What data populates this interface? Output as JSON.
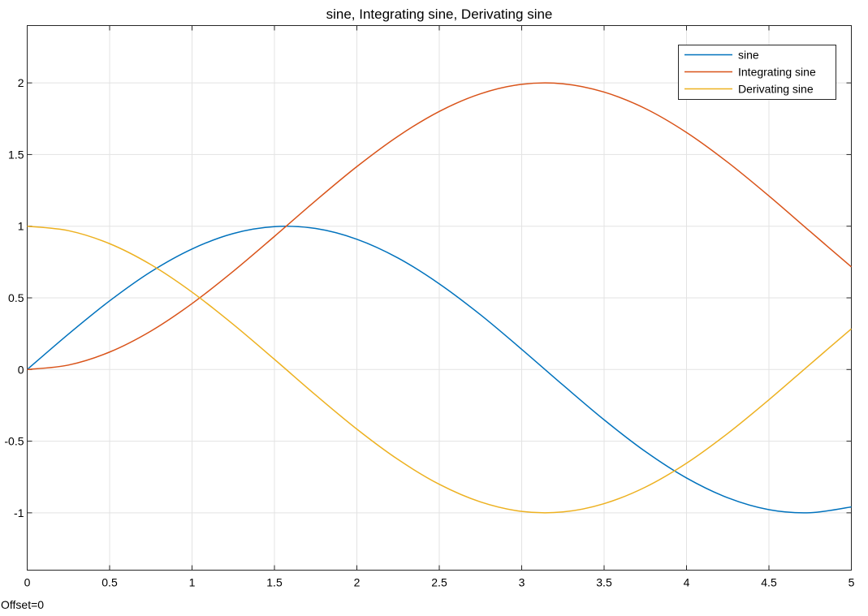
{
  "footer_text": "Offset=0",
  "chart_data": {
    "type": "line",
    "title": "sine, Integrating sine, Derivating sine",
    "xlabel": "",
    "ylabel": "",
    "xlim": [
      0,
      5
    ],
    "ylim": [
      -1.4,
      2.4
    ],
    "x_ticks": [
      0,
      0.5,
      1,
      1.5,
      2,
      2.5,
      3,
      3.5,
      4,
      4.5,
      5
    ],
    "x_tick_labels": [
      "0",
      "0.5",
      "1",
      "1.5",
      "2",
      "2.5",
      "3",
      "3.5",
      "4",
      "4.5",
      "5"
    ],
    "y_ticks": [
      -1,
      -0.5,
      0,
      0.5,
      1,
      1.5,
      2
    ],
    "y_tick_labels": [
      "-1",
      "-0.5",
      "0",
      "0.5",
      "1",
      "1.5",
      "2"
    ],
    "grid": true,
    "legend_position": "top-right",
    "x": [
      0,
      0.25,
      0.5,
      0.75,
      1,
      1.25,
      1.5,
      1.75,
      2,
      2.25,
      2.5,
      2.75,
      3,
      3.25,
      3.5,
      3.75,
      4,
      4.25,
      4.5,
      4.75,
      5
    ],
    "series": [
      {
        "name": "sine",
        "color": "#0072BD",
        "values": [
          0,
          0.247,
          0.479,
          0.682,
          0.841,
          0.949,
          0.997,
          0.984,
          0.909,
          0.778,
          0.598,
          0.382,
          0.141,
          -0.108,
          -0.351,
          -0.572,
          -0.757,
          -0.895,
          -0.978,
          -0.999,
          -0.959
        ]
      },
      {
        "name": "Integrating sine",
        "color": "#D95319",
        "values": [
          0,
          0.031,
          0.122,
          0.268,
          0.46,
          0.685,
          0.929,
          1.178,
          1.416,
          1.628,
          1.801,
          1.924,
          1.99,
          1.994,
          1.936,
          1.821,
          1.654,
          1.446,
          1.211,
          0.963,
          0.716
        ]
      },
      {
        "name": "Derivating sine",
        "color": "#EDB120",
        "values": [
          1,
          0.969,
          0.878,
          0.732,
          0.54,
          0.315,
          0.071,
          -0.178,
          -0.416,
          -0.628,
          -0.801,
          -0.924,
          -0.99,
          -0.994,
          -0.936,
          -0.821,
          -0.654,
          -0.446,
          -0.211,
          0.037,
          0.284
        ]
      }
    ]
  }
}
